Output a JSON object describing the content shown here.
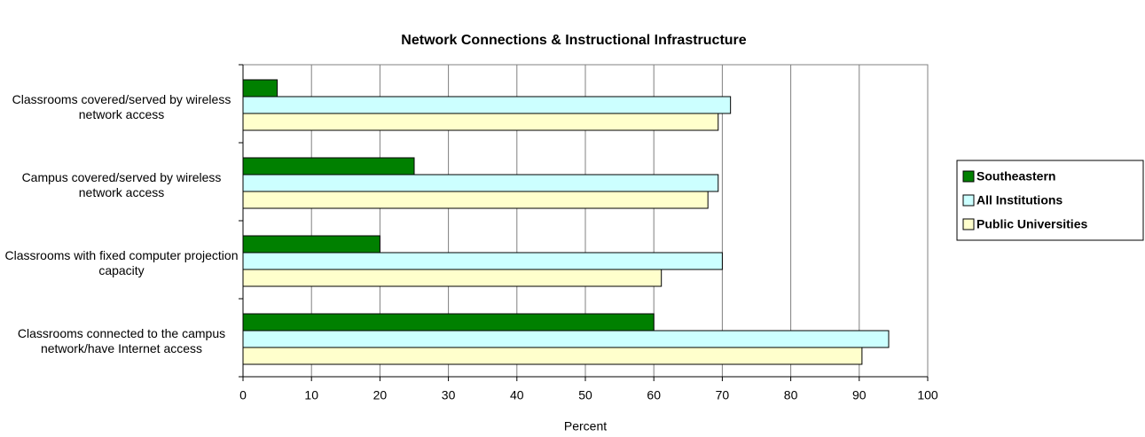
{
  "chart_data": {
    "type": "bar",
    "orientation": "horizontal",
    "title": "Network Connections & Instructional Infrastructure",
    "xlabel": "Percent",
    "categories": [
      "Classrooms covered/served by wireless network access",
      "Campus covered/served by wireless network access",
      "Classrooms with fixed computer projection capacity",
      "Classrooms connected to the campus network/have Internet access"
    ],
    "series": [
      {
        "name": "Southeastern",
        "color": "#008000",
        "values": [
          5,
          25,
          20,
          60
        ]
      },
      {
        "name": "All Institutions",
        "color": "#ccffff",
        "values": [
          71.2,
          69.4,
          70,
          94.3
        ]
      },
      {
        "name": "Public Universities",
        "color": "#ffffcc",
        "values": [
          69.4,
          67.9,
          61.1,
          90.4
        ]
      }
    ],
    "xlim": [
      0,
      100
    ],
    "xticks": [
      0,
      10,
      20,
      30,
      40,
      50,
      60,
      70,
      80,
      90,
      100
    ],
    "grid": true,
    "legend": "right"
  }
}
